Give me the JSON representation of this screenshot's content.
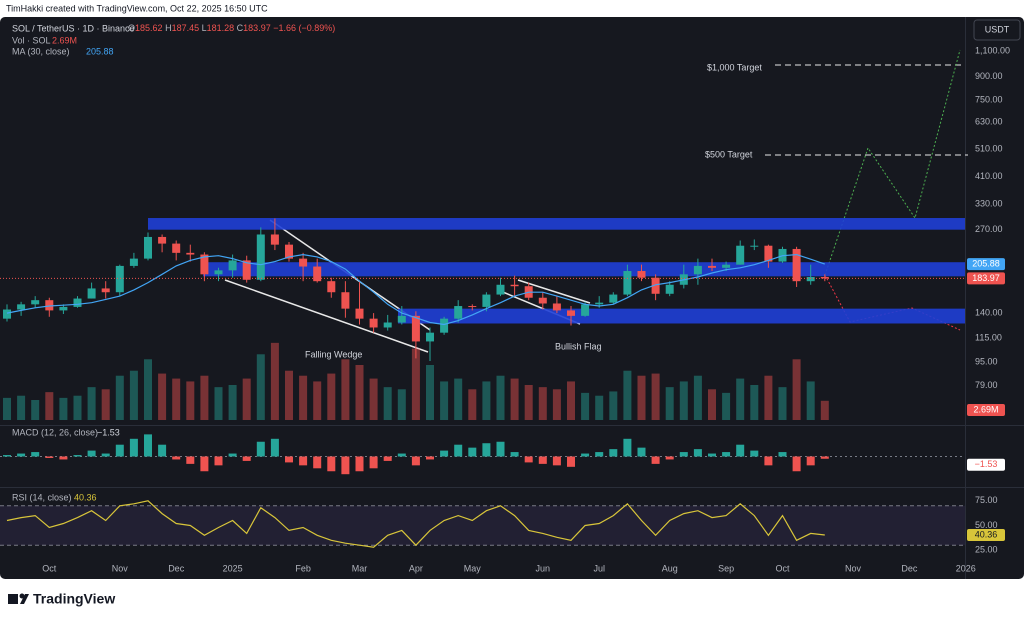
{
  "attribution": "TimHakki created with TradingView.com, Oct 22, 2025 16:50 UTC",
  "currency": "USDT",
  "brand": "TradingView",
  "chart_data": {
    "type": "candlestick",
    "title": "SOL / TetherUS · 1D · Binance",
    "legend_fields": [
      {
        "label": "O",
        "value": 185.62
      },
      {
        "label": "H",
        "value": 187.45
      },
      {
        "label": "L",
        "value": 181.28
      },
      {
        "label": "C",
        "value": 183.97
      }
    ],
    "change_label": "−1.66 (−0.89%)",
    "up_color": "#26a69a",
    "down_color": "#ef5350",
    "log_scale": true,
    "ylim": [
      58,
      1430
    ],
    "yticks": [
      {
        "value": 1100,
        "label": "1,100.00"
      },
      {
        "value": 900,
        "label": "900.00"
      },
      {
        "value": 750,
        "label": "750.00"
      },
      {
        "value": 630,
        "label": "630.00"
      },
      {
        "value": 510,
        "label": "510.00"
      },
      {
        "value": 410,
        "label": "410.00"
      },
      {
        "value": 330,
        "label": "330.00"
      },
      {
        "value": 270,
        "label": "270.00"
      },
      {
        "value": 140,
        "label": "140.00"
      },
      {
        "value": 115,
        "label": "115.00"
      },
      {
        "value": 95,
        "label": "95.00"
      },
      {
        "value": 79,
        "label": "79.00"
      }
    ],
    "categories": [
      null,
      null,
      null,
      "Oct",
      null,
      null,
      null,
      null,
      "Nov",
      null,
      null,
      null,
      "Dec",
      null,
      null,
      null,
      "2025",
      null,
      null,
      null,
      null,
      "Feb",
      null,
      null,
      null,
      "Mar",
      null,
      null,
      null,
      "Apr",
      null,
      null,
      null,
      "May",
      null,
      null,
      null,
      null,
      "Jun",
      null,
      null,
      null,
      "Jul",
      null,
      null,
      null,
      null,
      "Aug",
      null,
      null,
      null,
      "Sep",
      null,
      null,
      null,
      "Oct",
      null,
      null,
      null,
      null,
      "Nov",
      null,
      null,
      null,
      "Dec",
      null,
      null,
      null,
      "2026"
    ],
    "open": [
      134,
      144,
      150,
      155,
      143,
      147,
      157,
      170,
      165,
      203,
      215,
      255,
      242,
      225,
      222,
      190,
      196,
      212,
      182,
      260,
      240,
      215,
      202,
      180,
      165,
      145,
      134,
      125,
      130,
      137,
      112,
      120,
      134,
      148,
      147,
      162,
      175,
      173,
      158,
      151,
      143,
      137,
      150,
      152,
      162,
      195,
      185,
      163,
      175,
      190,
      203,
      200,
      205,
      238,
      238,
      210,
      232,
      180,
      186,
      null,
      null,
      null,
      null,
      null,
      null,
      null,
      null,
      null,
      null
    ],
    "high": [
      150,
      153,
      160,
      158,
      150,
      160,
      178,
      180,
      205,
      225,
      264,
      260,
      248,
      240,
      226,
      200,
      222,
      220,
      275,
      295,
      245,
      225,
      215,
      185,
      180,
      180,
      140,
      138,
      148,
      142,
      125,
      136,
      155,
      150,
      165,
      185,
      188,
      178,
      165,
      160,
      148,
      153,
      160,
      165,
      205,
      205,
      190,
      180,
      205,
      215,
      215,
      210,
      248,
      250,
      240,
      236,
      236,
      205,
      190,
      null,
      null,
      null,
      null,
      null,
      null,
      null,
      null,
      null,
      null
    ],
    "low": [
      131,
      137,
      146,
      136,
      139,
      146,
      157,
      157,
      160,
      200,
      212,
      226,
      212,
      210,
      180,
      180,
      185,
      178,
      180,
      230,
      210,
      180,
      178,
      158,
      135,
      128,
      120,
      122,
      128,
      98,
      96,
      118,
      130,
      143,
      142,
      160,
      160,
      155,
      144,
      140,
      127,
      136,
      146,
      150,
      160,
      180,
      155,
      160,
      170,
      175,
      195,
      195,
      205,
      230,
      200,
      208,
      172,
      175,
      180,
      null,
      null,
      null,
      null,
      null,
      null,
      null,
      null,
      null,
      null
    ],
    "close": [
      144,
      150,
      155,
      143,
      147,
      157,
      170,
      165,
      203,
      215,
      255,
      242,
      225,
      222,
      190,
      196,
      212,
      182,
      260,
      240,
      215,
      202,
      180,
      165,
      145,
      134,
      125,
      130,
      137,
      112,
      120,
      134,
      148,
      147,
      162,
      175,
      173,
      158,
      151,
      143,
      137,
      150,
      152,
      162,
      195,
      185,
      163,
      175,
      190,
      203,
      200,
      205,
      238,
      238,
      210,
      232,
      180,
      186,
      183.97,
      null,
      null,
      null,
      null,
      null,
      null,
      null,
      null,
      null,
      null
    ],
    "ma": {
      "name": "MA (30, close)",
      "color": "#42a5f5",
      "values": [
        140,
        143,
        146,
        148,
        149,
        150,
        152,
        156,
        160,
        168,
        178,
        190,
        203,
        212,
        218,
        220,
        215,
        208,
        205,
        210,
        218,
        222,
        218,
        210,
        198,
        180,
        165,
        150,
        140,
        135,
        130,
        128,
        132,
        138,
        145,
        152,
        160,
        165,
        165,
        160,
        155,
        150,
        148,
        150,
        158,
        168,
        175,
        178,
        182,
        186,
        192,
        197,
        200,
        205,
        212,
        220,
        222,
        214,
        205.88,
        null,
        null,
        null,
        null,
        null,
        null,
        null,
        null,
        null,
        null
      ]
    },
    "volume": {
      "name": "Vol · SOL",
      "label": "2.69M",
      "ylim": [
        0,
        14
      ],
      "values": [
        3.1,
        3.4,
        2.8,
        3.9,
        3.1,
        3.4,
        4.6,
        4.3,
        6.2,
        6.9,
        8.5,
        6.5,
        5.8,
        5.4,
        6.2,
        4.6,
        4.9,
        5.8,
        9.2,
        10.8,
        6.9,
        6.2,
        5.4,
        6.5,
        8.5,
        7.7,
        5.8,
        4.6,
        4.3,
        10.0,
        7.7,
        5.4,
        5.8,
        4.3,
        5.4,
        6.2,
        5.8,
        4.9,
        4.6,
        4.3,
        5.4,
        3.8,
        3.4,
        4.0,
        6.9,
        6.2,
        6.5,
        4.6,
        5.4,
        6.2,
        4.3,
        3.8,
        5.8,
        4.9,
        6.2,
        4.6,
        8.5,
        5.4,
        2.69,
        null,
        null,
        null,
        null,
        null,
        null,
        null,
        null,
        null,
        null
      ]
    },
    "macd": {
      "name": "MACD (12, 26, close)",
      "label": "−1.53",
      "ylim": [
        -20,
        20
      ],
      "values": [
        1,
        2,
        3,
        -1,
        -2,
        1,
        4,
        2,
        8,
        12,
        15,
        8,
        -2,
        -5,
        -10,
        -6,
        2,
        -3,
        10,
        12,
        -4,
        -6,
        -8,
        -10,
        -12,
        -10,
        -8,
        -3,
        2,
        -6,
        -2,
        4,
        8,
        6,
        9,
        10,
        3,
        -4,
        -5,
        -6,
        -7,
        2,
        3,
        5,
        12,
        6,
        -5,
        -2,
        3,
        5,
        2,
        3,
        8,
        4,
        -6,
        3,
        -10,
        -6,
        -1.53,
        null,
        null,
        null,
        null,
        null,
        null,
        null,
        null,
        null,
        null
      ]
    },
    "rsi": {
      "name": "RSI (14, close)",
      "color": "#d8c53a",
      "ylim": [
        15,
        88
      ],
      "band": [
        30,
        70
      ],
      "yticks": [
        {
          "value": 75,
          "label": "75.00"
        },
        {
          "value": 50,
          "label": "50.00"
        },
        {
          "value": 25,
          "label": "25.00"
        }
      ],
      "values": [
        55,
        58,
        60,
        48,
        52,
        58,
        65,
        55,
        70,
        72,
        75,
        62,
        52,
        50,
        40,
        48,
        55,
        42,
        68,
        58,
        45,
        48,
        40,
        35,
        32,
        30,
        28,
        40,
        45,
        30,
        45,
        55,
        60,
        55,
        65,
        70,
        60,
        45,
        42,
        38,
        35,
        50,
        52,
        60,
        72,
        55,
        40,
        55,
        62,
        65,
        58,
        60,
        72,
        60,
        40,
        60,
        35,
        42,
        40.36,
        null,
        null,
        null,
        null,
        null,
        null,
        null,
        null,
        null,
        null
      ]
    },
    "zones": [
      {
        "low": 270,
        "high": 296
      },
      {
        "low": 187,
        "high": 209
      },
      {
        "low": 129,
        "high": 145
      }
    ],
    "zone_color": "#1f3fd6",
    "annotations": [
      "Falling Wedge",
      "Bullish Flag",
      "$1,000 Target",
      "$500 Target"
    ]
  }
}
